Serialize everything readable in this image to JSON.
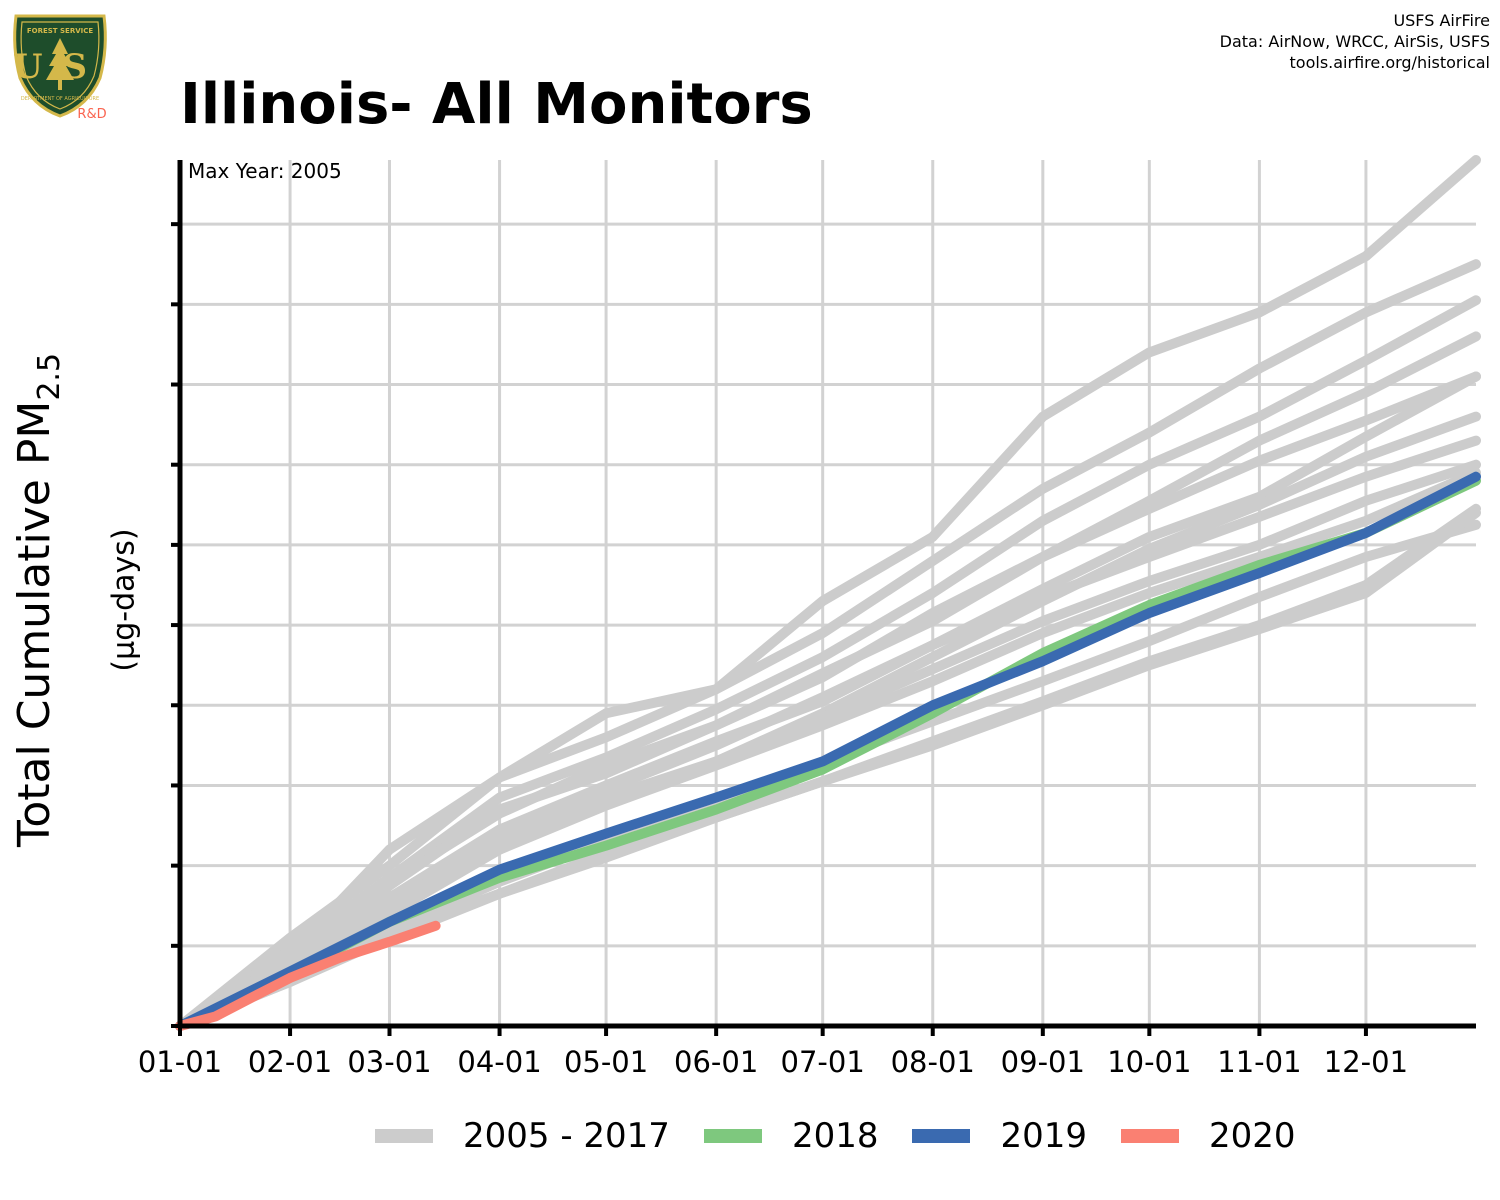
{
  "logo": {
    "top_text": "FOREST SERVICE",
    "letters": "US",
    "bottom_text": "DEPARTMENT OF AGRICULTURE",
    "rd": "R&D"
  },
  "credits": [
    "USFS AirFire",
    "Data: AirNow, WRCC, AirSis, USFS",
    "tools.airfire.org/historical"
  ],
  "colors": {
    "historical": "#cccccc",
    "y2018": "#7ec87e",
    "y2019": "#3a6ab0",
    "y2020": "#fa8072"
  },
  "chart_data": {
    "type": "line",
    "title": "Illinois- All Monitors",
    "annotation": "Max Year: 2005",
    "ylabel": "Total Cumulative PM",
    "ylabel_subscript": "2.5",
    "yunits": "(µg-days)",
    "x_tick_labels": [
      "01-01",
      "02-01",
      "03-01",
      "04-01",
      "05-01",
      "06-01",
      "07-01",
      "08-01",
      "09-01",
      "10-01",
      "11-01",
      "12-01"
    ],
    "x_tick_days": [
      0,
      31,
      59,
      90,
      120,
      151,
      181,
      212,
      243,
      273,
      304,
      334
    ],
    "xlim": [
      0,
      365
    ],
    "ylim": [
      0,
      10.8
    ],
    "y_ticks": [
      0,
      1,
      2,
      3,
      4,
      5,
      6,
      7,
      8,
      9,
      10
    ],
    "y_tick_labels_visible": false,
    "grid": true,
    "legend_position": "bottom",
    "series": [
      {
        "name": "2005 - 2017",
        "group": "historical",
        "width": 10,
        "x": [
          0,
          31,
          59,
          90,
          120,
          151,
          181,
          212,
          243,
          273,
          304,
          334,
          365
        ],
        "lines": [
          [
            0,
            0.9,
            2.2,
            3.1,
            3.9,
            4.2,
            5.3,
            6.1,
            7.6,
            8.4,
            8.9,
            9.6,
            10.8
          ],
          [
            0,
            1.1,
            2.0,
            3.1,
            3.6,
            4.2,
            4.9,
            5.8,
            6.7,
            7.4,
            8.2,
            8.9,
            9.5
          ],
          [
            0,
            0.95,
            1.85,
            2.85,
            3.35,
            3.95,
            4.6,
            5.4,
            6.3,
            7.0,
            7.6,
            8.3,
            9.05
          ],
          [
            0,
            0.95,
            1.8,
            2.65,
            3.25,
            3.75,
            4.35,
            5.15,
            5.85,
            6.55,
            7.3,
            7.9,
            8.6
          ],
          [
            0,
            0.85,
            1.75,
            2.7,
            3.15,
            3.75,
            4.4,
            5.05,
            5.85,
            6.45,
            7.05,
            7.55,
            8.1
          ],
          [
            0,
            0.8,
            1.6,
            2.45,
            3.0,
            3.55,
            4.05,
            4.75,
            5.45,
            6.1,
            6.6,
            7.35,
            8.1
          ],
          [
            0,
            0.75,
            1.45,
            2.2,
            2.8,
            3.3,
            3.9,
            4.6,
            5.3,
            5.95,
            6.5,
            7.1,
            7.6
          ],
          [
            0,
            0.8,
            1.5,
            2.35,
            2.95,
            3.5,
            4.1,
            4.75,
            5.35,
            5.85,
            6.35,
            6.85,
            7.3
          ],
          [
            0,
            0.75,
            1.45,
            2.25,
            2.85,
            3.3,
            3.85,
            4.45,
            5.05,
            5.55,
            6.0,
            6.55,
            7.0
          ],
          [
            0,
            0.7,
            1.4,
            2.2,
            2.75,
            3.25,
            3.75,
            4.3,
            4.9,
            5.4,
            5.85,
            6.3,
            6.9
          ],
          [
            0,
            0.55,
            1.15,
            1.65,
            2.15,
            2.6,
            3.05,
            3.55,
            4.05,
            4.55,
            5.0,
            5.5,
            6.45
          ],
          [
            0,
            0.6,
            1.2,
            1.8,
            2.3,
            2.8,
            3.3,
            3.8,
            4.3,
            4.8,
            5.35,
            5.85,
            6.25
          ],
          [
            0,
            0.55,
            1.1,
            1.65,
            2.1,
            2.6,
            3.05,
            3.5,
            4.0,
            4.5,
            4.95,
            5.4,
            6.4
          ]
        ]
      },
      {
        "name": "2018",
        "group": "y2018",
        "width": 10,
        "x": [
          0,
          31,
          59,
          90,
          120,
          151,
          181,
          212,
          243,
          273,
          304,
          334,
          365
        ],
        "values": [
          0,
          0.65,
          1.3,
          1.85,
          2.25,
          2.7,
          3.2,
          3.9,
          4.65,
          5.25,
          5.75,
          6.15,
          6.8
        ]
      },
      {
        "name": "2019",
        "group": "y2019",
        "width": 10,
        "x": [
          0,
          31,
          59,
          90,
          120,
          151,
          181,
          212,
          243,
          273,
          304,
          334,
          365
        ],
        "values": [
          0,
          0.68,
          1.3,
          1.95,
          2.4,
          2.85,
          3.3,
          4.0,
          4.55,
          5.15,
          5.65,
          6.15,
          6.85
        ]
      },
      {
        "name": "2020",
        "group": "y2020",
        "width": 10,
        "x": [
          0,
          10,
          20,
          31,
          45,
          59,
          72
        ],
        "values": [
          0,
          0.12,
          0.35,
          0.6,
          0.85,
          1.05,
          1.25
        ]
      }
    ]
  }
}
